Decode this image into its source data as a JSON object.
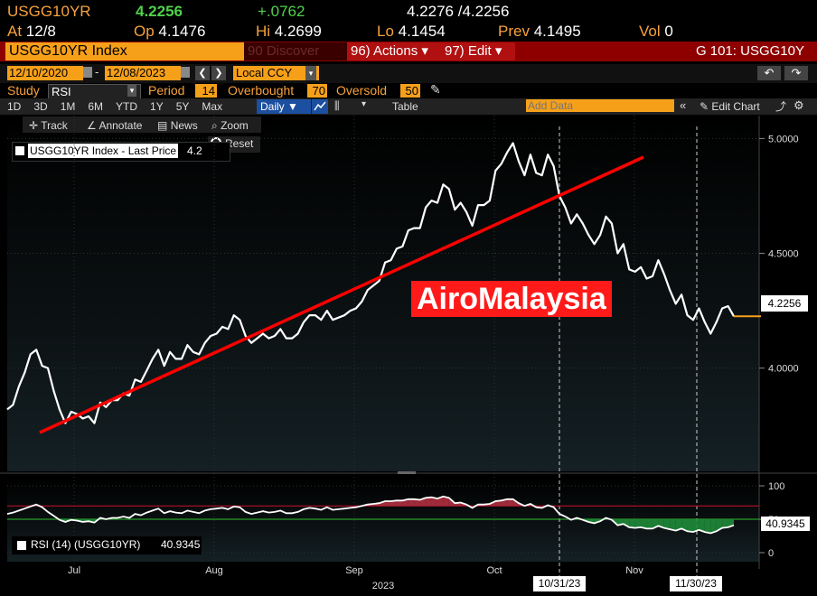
{
  "quote": {
    "ticker": "USGG10YR",
    "last": "4.2256",
    "change": "+.0762",
    "bid_ask": "4.2276 /4.2256",
    "at_label": "At",
    "at_value": "12/8",
    "open_label": "Op",
    "open_value": "4.1476",
    "high_label": "Hi",
    "high_value": "4.2699",
    "low_label": "Lo",
    "low_value": "4.1454",
    "prev_label": "Prev",
    "prev_value": "4.1495",
    "vol_label": "Vol",
    "vol_value": "0"
  },
  "titlebar": {
    "security": "USGG10YR Index",
    "discover": "90 Discover",
    "actions": "96) Actions ▾",
    "edit": "97) Edit ▾",
    "function": "G 101: USGG10Y"
  },
  "dates": {
    "start": "12/10/2020",
    "end": "12/08/2023",
    "currency": "Local CCY"
  },
  "study": {
    "label": "Study",
    "name": "RSI",
    "period_label": "Period",
    "period_value": "14",
    "overbought_label": "Overbought",
    "overbought_value": "70",
    "oversold_label": "Oversold",
    "oversold_value": "50"
  },
  "toolbar": {
    "ranges": [
      "1D",
      "3D",
      "1M",
      "6M",
      "YTD",
      "1Y",
      "5Y",
      "Max"
    ],
    "frequency": "Daily ▼",
    "table": "Table",
    "add_data_placeholder": "Add Data",
    "edit_chart": "Edit Chart"
  },
  "subtoolbar": {
    "track": "Track",
    "annotate": "Annotate",
    "news": "News",
    "zoom": "Zoom",
    "reset": "Reset"
  },
  "legend": {
    "price": "USGG10YR Index - Last Price",
    "price_value": "4.2",
    "rsi": "RSI (14) (USGG10YR)",
    "rsi_value": "40.9345"
  },
  "watermark": "AiroMalaysia",
  "markers": {
    "marker1": "10/31/23",
    "marker2": "11/30/23"
  },
  "chart_data": {
    "type": "line",
    "series": [
      {
        "name": "USGG10YR Index - Last Price",
        "values": [
          3.82,
          3.84,
          3.92,
          3.98,
          4.06,
          4.08,
          4.01,
          4.0,
          3.9,
          3.82,
          3.76,
          3.81,
          3.8,
          3.78,
          3.79,
          3.76,
          3.85,
          3.83,
          3.86,
          3.86,
          3.89,
          3.88,
          3.95,
          3.94,
          3.99,
          4.04,
          4.08,
          4.01,
          4.07,
          4.04,
          4.04,
          4.1,
          4.07,
          4.06,
          4.11,
          4.14,
          4.15,
          4.18,
          4.17,
          4.23,
          4.21,
          4.14,
          4.11,
          4.13,
          4.15,
          4.13,
          4.14,
          4.17,
          4.13,
          4.13,
          4.15,
          4.2,
          4.23,
          4.23,
          4.21,
          4.25,
          4.21,
          4.22,
          4.23,
          4.25,
          4.26,
          4.29,
          4.34,
          4.36,
          4.38,
          4.46,
          4.47,
          4.52,
          4.53,
          4.6,
          4.61,
          4.61,
          4.7,
          4.73,
          4.72,
          4.8,
          4.78,
          4.69,
          4.72,
          4.68,
          4.62,
          4.71,
          4.71,
          4.73,
          4.86,
          4.89,
          4.94,
          4.98,
          4.9,
          4.84,
          4.93,
          4.85,
          4.84,
          4.93,
          4.88,
          4.75,
          4.7,
          4.63,
          4.67,
          4.63,
          4.58,
          4.54,
          4.58,
          4.66,
          4.63,
          4.5,
          4.54,
          4.43,
          4.42,
          4.44,
          4.39,
          4.4,
          4.47,
          4.41,
          4.34,
          4.28,
          4.32,
          4.23,
          4.21,
          4.26,
          4.2,
          4.15,
          4.2,
          4.26,
          4.27,
          4.2256
        ]
      },
      {
        "name": "RSI (14) (USGG10YR)",
        "values": [
          58,
          60,
          63,
          66,
          69,
          72,
          68,
          61,
          55,
          49,
          46,
          49,
          48,
          46,
          47,
          45,
          52,
          50,
          52,
          52,
          54,
          52,
          58,
          56,
          60,
          63,
          66,
          59,
          62,
          60,
          59,
          63,
          61,
          59,
          63,
          65,
          66,
          67,
          65,
          69,
          68,
          61,
          58,
          60,
          62,
          60,
          61,
          63,
          59,
          59,
          61,
          65,
          67,
          66,
          64,
          68,
          64,
          65,
          66,
          67,
          68,
          70,
          72,
          73,
          74,
          77,
          77,
          78,
          78,
          80,
          80,
          79,
          82,
          83,
          81,
          84,
          82,
          74,
          75,
          72,
          67,
          72,
          72,
          73,
          77,
          78,
          80,
          80,
          74,
          70,
          73,
          68,
          67,
          71,
          68,
          58,
          54,
          49,
          52,
          49,
          46,
          44,
          47,
          52,
          49,
          41,
          43,
          38,
          37,
          38,
          36,
          36,
          40,
          37,
          35,
          33,
          36,
          32,
          31,
          34,
          31,
          29,
          32,
          37,
          38,
          40.9345
        ]
      }
    ],
    "x_axis_labels": [
      "Jul",
      "Aug",
      "Sep",
      "Oct",
      "Nov"
    ],
    "x_year_label": "2023",
    "y_axis_price": [
      "4.0000",
      "4.5000",
      "5.0000"
    ],
    "y_axis_price_range": [
      3.55,
      5.1
    ],
    "y_axis_rsi": [
      "0",
      "50",
      "100"
    ],
    "y_axis_rsi_range": [
      0,
      100
    ],
    "rsi_overbought": 70,
    "rsi_oversold": 50,
    "last_price_label": "4.2256",
    "last_rsi_label": "40.9345"
  },
  "colors": {
    "accent_orange": "#f6a01a",
    "titlebar_red": "#8b0000",
    "line_white": "#ffffff",
    "trend_red": "#ff0000",
    "rsi_overbought_line": "#c8102e",
    "rsi_oversold_line": "#2ec22e"
  }
}
